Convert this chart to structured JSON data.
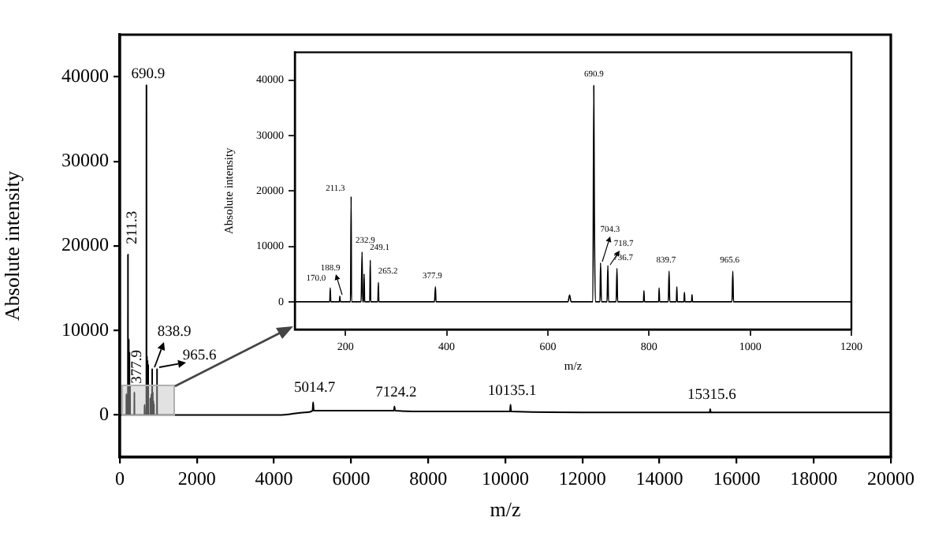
{
  "chart_data": [
    {
      "type": "line",
      "xlabel": "m/z",
      "ylabel": "Absolute intensity",
      "xlim": [
        0,
        20000
      ],
      "ylim": [
        -5000,
        45000
      ],
      "xticks": [
        0,
        2000,
        4000,
        6000,
        8000,
        10000,
        12000,
        14000,
        16000,
        18000,
        20000
      ],
      "yticks": [
        0,
        10000,
        20000,
        30000,
        40000
      ],
      "grid": false,
      "legend": false,
      "marker": "none",
      "x": [
        0,
        100,
        169,
        170,
        171,
        188,
        188.9,
        190,
        210,
        211.3,
        212,
        231,
        232.9,
        234,
        236,
        237,
        238,
        248,
        249.1,
        250,
        264,
        265.2,
        266,
        376,
        377.9,
        379,
        640,
        643,
        646,
        689,
        690.9,
        692,
        694,
        703,
        704.3,
        706,
        717,
        718.7,
        720,
        735,
        736.7,
        738,
        789,
        790,
        791,
        819,
        820,
        821,
        838,
        839.7,
        841,
        854,
        855,
        856,
        869,
        870,
        871,
        884,
        885,
        886,
        964,
        965.6,
        967,
        1100,
        4200,
        4800,
        5000,
        5014.7,
        5030,
        6000,
        7110,
        7124.2,
        7140,
        8000,
        10120,
        10135.1,
        10150,
        12000,
        15300,
        15315.6,
        15330,
        18000,
        20000
      ],
      "series": [
        {
          "color": "#000000",
          "values": [
            0,
            0,
            0,
            2500,
            0,
            0,
            1000,
            0,
            0,
            19000,
            0,
            0,
            9000,
            0,
            0,
            5000,
            0,
            0,
            7500,
            0,
            0,
            3500,
            0,
            0,
            2700,
            0,
            0,
            1200,
            0,
            0,
            39000,
            16500,
            0,
            0,
            7000,
            0,
            0,
            6500,
            0,
            0,
            6000,
            0,
            0,
            2000,
            0,
            0,
            2500,
            0,
            0,
            5500,
            0,
            0,
            2700,
            0,
            0,
            1700,
            0,
            0,
            1300,
            0,
            0,
            5500,
            0,
            0,
            0,
            300,
            500,
            1500,
            500,
            500,
            500,
            1000,
            500,
            400,
            400,
            1200,
            400,
            300,
            300,
            700,
            300,
            300,
            300
          ]
        }
      ],
      "annotations": [
        {
          "text": "211.3",
          "x": 211.3,
          "y": 19000
        },
        {
          "text": "377.9",
          "x": 377.9,
          "y": 2700
        },
        {
          "text": "690.9",
          "x": 690.9,
          "y": 39000
        },
        {
          "text": "838.9",
          "x": 838.9,
          "y": 5500
        },
        {
          "text": "965.6",
          "x": 965.6,
          "y": 5500
        },
        {
          "text": "5014.7",
          "x": 5014.7,
          "y": 1500
        },
        {
          "text": "7124.2",
          "x": 7124.2,
          "y": 1000
        },
        {
          "text": "10135.1",
          "x": 10135.1,
          "y": 1200
        },
        {
          "text": "15315.6",
          "x": 15315.6,
          "y": 700
        }
      ]
    },
    {
      "type": "line",
      "xlabel": "m/z",
      "ylabel": "Absolute intensity",
      "xlim": [
        100,
        1200
      ],
      "ylim": [
        -5000,
        45000
      ],
      "xticks": [
        200,
        400,
        600,
        800,
        1000,
        1200
      ],
      "yticks": [
        0,
        10000,
        20000,
        30000,
        40000
      ],
      "grid": false,
      "legend": false,
      "marker": "none",
      "x": [
        100,
        169,
        170,
        171,
        188,
        188.9,
        190,
        210,
        211.3,
        212,
        231,
        232.9,
        234,
        236,
        237,
        238,
        248,
        249.1,
        250,
        264,
        265.2,
        266,
        376,
        377.9,
        379,
        640,
        643,
        646,
        689,
        690.9,
        692,
        694,
        703,
        704.3,
        706,
        717,
        718.7,
        720,
        735,
        736.7,
        738,
        789,
        790,
        791,
        819,
        820,
        821,
        838,
        839.7,
        841,
        854,
        855,
        856,
        869,
        870,
        871,
        884,
        885,
        886,
        964,
        965.6,
        967,
        1200
      ],
      "series": [
        {
          "color": "#000000",
          "values": [
            0,
            0,
            2500,
            0,
            0,
            1000,
            0,
            0,
            19000,
            0,
            0,
            9000,
            0,
            0,
            5000,
            0,
            0,
            7500,
            0,
            0,
            3500,
            0,
            0,
            2700,
            0,
            0,
            1200,
            0,
            0,
            39000,
            16500,
            0,
            0,
            7000,
            0,
            0,
            6500,
            0,
            0,
            6000,
            0,
            0,
            2000,
            0,
            0,
            2500,
            0,
            0,
            5500,
            0,
            0,
            2700,
            0,
            0,
            1700,
            0,
            0,
            1300,
            0,
            0,
            5500,
            0,
            0
          ]
        }
      ],
      "annotations": [
        {
          "text": "170.0",
          "x": 170,
          "y": 2500
        },
        {
          "text": "188.9",
          "x": 188.9,
          "y": 1000
        },
        {
          "text": "211.3",
          "x": 211.3,
          "y": 19000
        },
        {
          "text": "232.9",
          "x": 232.9,
          "y": 9000
        },
        {
          "text": "249.1",
          "x": 249.1,
          "y": 7500
        },
        {
          "text": "265.2",
          "x": 265.2,
          "y": 3500
        },
        {
          "text": "377.9",
          "x": 377.9,
          "y": 2700
        },
        {
          "text": "690.9",
          "x": 690.9,
          "y": 39000
        },
        {
          "text": "704.3",
          "x": 704.3,
          "y": 7000
        },
        {
          "text": "718.7",
          "x": 718.7,
          "y": 6500
        },
        {
          "text": "736.7",
          "x": 736.7,
          "y": 6000
        },
        {
          "text": "839.7",
          "x": 839.7,
          "y": 5500
        },
        {
          "text": "965.6",
          "x": 965.6,
          "y": 5500
        }
      ]
    }
  ]
}
